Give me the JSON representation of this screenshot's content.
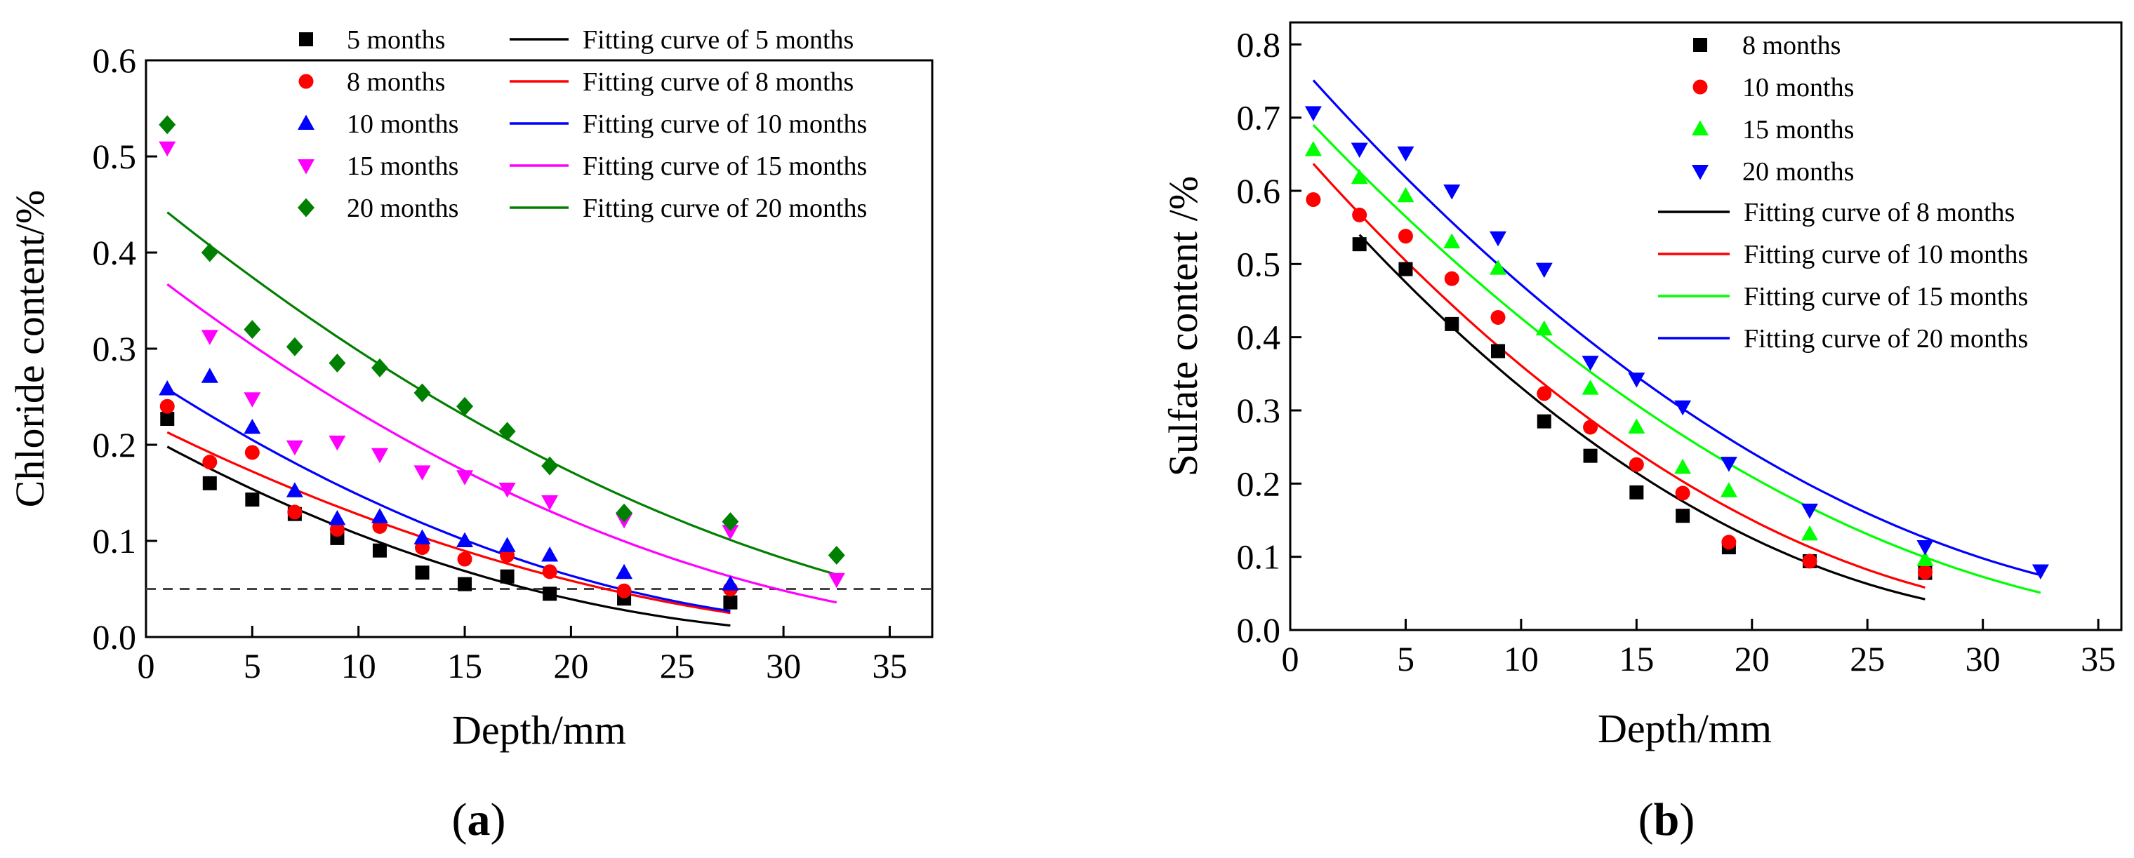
{
  "chart_data": [
    {
      "type": "scatter",
      "panel_label": "(a)",
      "panel_letter": "a",
      "xlabel": "Depth/mm",
      "ylabel": "Chloride content/%",
      "xlim": [
        0,
        37
      ],
      "ylim": [
        0,
        0.6
      ],
      "xticks": [
        0,
        5,
        10,
        15,
        20,
        25,
        30,
        35
      ],
      "xtick_labels": [
        "0",
        "5",
        "10",
        "15",
        "20",
        "25",
        "30",
        "35"
      ],
      "yticks": [
        0.0,
        0.1,
        0.2,
        0.3,
        0.4,
        0.5,
        0.6
      ],
      "ytick_labels": [
        "0.0",
        "0.1",
        "0.2",
        "0.3",
        "0.4",
        "0.5",
        "0.6"
      ],
      "reference_line": {
        "y": 0.05,
        "style": "dashed"
      },
      "legend_placement": "top-right, two columns",
      "series": [
        {
          "name": "5 months",
          "marker": "square",
          "color": "#000000",
          "x": [
            1,
            3,
            5,
            7,
            9,
            11,
            13,
            15,
            17,
            19,
            22.5,
            27.5
          ],
          "y": [
            0.227,
            0.16,
            0.143,
            0.128,
            0.103,
            0.09,
            0.067,
            0.055,
            0.063,
            0.045,
            0.04,
            0.036
          ]
        },
        {
          "name": "8 months",
          "marker": "circle",
          "color": "#ff0000",
          "x": [
            1,
            3,
            5,
            7,
            9,
            11,
            13,
            15,
            17,
            19,
            22.5,
            27.5
          ],
          "y": [
            0.24,
            0.182,
            0.192,
            0.13,
            0.112,
            0.115,
            0.093,
            0.081,
            0.085,
            0.068,
            0.048,
            0.05
          ]
        },
        {
          "name": "10 months",
          "marker": "triangle-up",
          "color": "#0000ff",
          "x": [
            1,
            3,
            5,
            7,
            9,
            11,
            13,
            15,
            17,
            19,
            22.5,
            27.5
          ],
          "y": [
            0.258,
            0.271,
            0.218,
            0.152,
            0.123,
            0.125,
            0.103,
            0.1,
            0.095,
            0.085,
            0.067,
            0.055
          ]
        },
        {
          "name": "15 months",
          "marker": "triangle-down",
          "color": "#ff00ff",
          "x": [
            1,
            3,
            5,
            7,
            9,
            11,
            13,
            15,
            17,
            19,
            22.5,
            27.5,
            32.5
          ],
          "y": [
            0.509,
            0.313,
            0.248,
            0.198,
            0.203,
            0.19,
            0.172,
            0.167,
            0.154,
            0.141,
            0.122,
            0.11,
            0.06
          ]
        },
        {
          "name": "20 months",
          "marker": "diamond",
          "color": "#008000",
          "x": [
            1,
            3,
            5,
            7,
            9,
            11,
            13,
            15,
            17,
            19,
            22.5,
            27.5,
            32.5
          ],
          "y": [
            0.533,
            0.4,
            0.32,
            0.302,
            0.285,
            0.28,
            0.254,
            0.24,
            0.214,
            0.178,
            0.129,
            0.12,
            0.085
          ]
        }
      ],
      "fit_curves": [
        {
          "name": "Fitting curve of 5 months",
          "color": "#000000",
          "x": [
            1,
            27.5
          ],
          "y_start": 0.198,
          "y_end": 0.012,
          "xmin_quadratic": 34
        },
        {
          "name": "Fitting curve of 8 months",
          "color": "#ff0000",
          "x": [
            1,
            27.5
          ],
          "y_start": 0.213,
          "y_end": 0.025,
          "xmin_quadratic": 40
        },
        {
          "name": "Fitting curve of 10 months",
          "color": "#0000ff",
          "x": [
            1,
            27.5
          ],
          "y_start": 0.258,
          "y_end": 0.027,
          "xmin_quadratic": 36
        },
        {
          "name": "Fitting curve of 15 months",
          "color": "#ff00ff",
          "x": [
            1,
            32.5
          ],
          "y_start": 0.367,
          "y_end": 0.036,
          "xmin_quadratic": 44
        },
        {
          "name": "Fitting curve of 20 months",
          "color": "#008000",
          "x": [
            1,
            32.5
          ],
          "y_start": 0.442,
          "y_end": 0.065,
          "xmin_quadratic": 50
        }
      ]
    },
    {
      "type": "scatter",
      "panel_label": "(b)",
      "panel_letter": "b",
      "xlabel": "Depth/mm",
      "ylabel": "Sulfate content /%",
      "xlim": [
        0,
        36
      ],
      "ylim": [
        0,
        0.83
      ],
      "xticks": [
        0,
        5,
        10,
        15,
        20,
        25,
        30,
        35
      ],
      "xtick_labels": [
        "0",
        "5",
        "10",
        "15",
        "20",
        "25",
        "30",
        "35"
      ],
      "yticks": [
        0.0,
        0.1,
        0.2,
        0.3,
        0.4,
        0.5,
        0.6,
        0.7,
        0.8
      ],
      "ytick_labels": [
        "0.0",
        "0.1",
        "0.2",
        "0.3",
        "0.4",
        "0.5",
        "0.6",
        "0.7",
        "0.8"
      ],
      "legend_placement": "top-right, single column",
      "series": [
        {
          "name": "8 months",
          "marker": "square",
          "color": "#000000",
          "x": [
            3,
            5,
            7,
            9,
            11,
            13,
            15,
            17,
            19,
            22.5,
            27.5
          ],
          "y": [
            0.527,
            0.493,
            0.418,
            0.381,
            0.285,
            0.238,
            0.188,
            0.156,
            0.113,
            0.094,
            0.078
          ]
        },
        {
          "name": "10 months",
          "marker": "circle",
          "color": "#ff0000",
          "x": [
            1,
            3,
            5,
            7,
            9,
            11,
            13,
            15,
            17,
            19,
            22.5,
            27.5
          ],
          "y": [
            0.588,
            0.567,
            0.538,
            0.48,
            0.427,
            0.323,
            0.277,
            0.226,
            0.187,
            0.12,
            0.094,
            0.079
          ]
        },
        {
          "name": "15 months",
          "marker": "triangle-up",
          "color": "#00ff00",
          "x": [
            1,
            3,
            5,
            7,
            9,
            11,
            13,
            15,
            17,
            19,
            22.5,
            27.5
          ],
          "y": [
            0.656,
            0.618,
            0.593,
            0.53,
            0.494,
            0.411,
            0.33,
            0.277,
            0.222,
            0.19,
            0.131,
            0.096
          ]
        },
        {
          "name": "20 months",
          "marker": "triangle-down",
          "color": "#0000ff",
          "x": [
            1,
            3,
            5,
            7,
            9,
            11,
            13,
            15,
            17,
            19,
            22.5,
            27.5,
            32.5
          ],
          "y": [
            0.707,
            0.657,
            0.652,
            0.6,
            0.536,
            0.493,
            0.366,
            0.343,
            0.305,
            0.228,
            0.164,
            0.114,
            0.081
          ]
        }
      ],
      "fit_curves": [
        {
          "name": "Fitting curve of 8 months",
          "color": "#000000",
          "x": [
            3,
            27.5
          ],
          "y_start": 0.54,
          "y_end": 0.042,
          "xmin_quadratic": 34
        },
        {
          "name": "Fitting curve of 10 months",
          "color": "#ff0000",
          "x": [
            1,
            27.5
          ],
          "y_start": 0.637,
          "y_end": 0.058,
          "xmin_quadratic": 36
        },
        {
          "name": "Fitting curve of 15 months",
          "color": "#00ff00",
          "x": [
            1,
            32.5
          ],
          "y_start": 0.69,
          "y_end": 0.051,
          "xmin_quadratic": 42
        },
        {
          "name": "Fitting curve of 20 months",
          "color": "#0000ff",
          "x": [
            1,
            32.5
          ],
          "y_start": 0.751,
          "y_end": 0.075,
          "xmin_quadratic": 42
        }
      ]
    }
  ]
}
